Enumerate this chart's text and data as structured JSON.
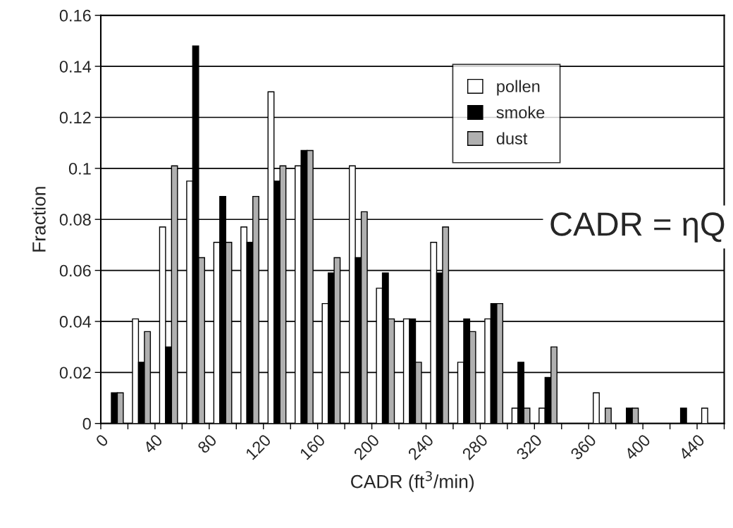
{
  "chart_data": {
    "type": "bar",
    "xlabel": "CADR (ft$^{3}$/min)",
    "ylabel": "Fraction",
    "x": [
      10,
      30,
      50,
      70,
      90,
      110,
      130,
      150,
      170,
      190,
      210,
      230,
      250,
      270,
      290,
      310,
      330,
      350,
      370,
      390,
      410,
      430,
      450
    ],
    "series": [
      {
        "name": "pollen",
        "color": "#ffffff",
        "values": [
          null,
          0.041,
          0.077,
          0.095,
          0.071,
          0.077,
          0.13,
          0.101,
          0.047,
          0.101,
          0.053,
          0.041,
          0.071,
          0.024,
          0.041,
          0.006,
          0.006,
          null,
          0.012,
          null,
          null,
          null,
          0.006
        ]
      },
      {
        "name": "smoke",
        "color": "#000000",
        "values": [
          0.012,
          0.024,
          0.03,
          0.148,
          0.089,
          0.071,
          0.095,
          0.107,
          0.059,
          0.065,
          0.059,
          0.041,
          0.059,
          0.041,
          0.047,
          0.024,
          0.018,
          null,
          null,
          0.006,
          null,
          0.006,
          null
        ]
      },
      {
        "name": "dust",
        "color": "#b0b0b0",
        "values": [
          0.012,
          0.036,
          0.101,
          0.065,
          0.071,
          0.089,
          0.101,
          0.107,
          0.065,
          0.083,
          0.041,
          0.024,
          0.077,
          0.036,
          0.047,
          0.006,
          0.03,
          null,
          0.006,
          0.006,
          null,
          null,
          null
        ]
      }
    ],
    "xlim": [
      0,
      460
    ],
    "xticks": [
      0,
      {
        "value": 20,
        "label": null
      },
      40,
      {
        "value": 60,
        "label": null
      },
      80,
      {
        "value": 100,
        "label": null
      },
      120,
      {
        "value": 140,
        "label": null
      },
      160,
      {
        "value": 180,
        "label": null
      },
      200,
      {
        "value": 220,
        "label": null
      },
      240,
      {
        "value": 260,
        "label": null
      },
      280,
      {
        "value": 300,
        "label": null
      },
      320,
      {
        "value": 340,
        "label": null
      },
      360,
      {
        "value": 380,
        "label": null
      },
      400,
      {
        "value": 420,
        "label": null
      },
      440,
      {
        "value": 460,
        "label": null
      }
    ],
    "ylim": [
      0,
      0.16
    ],
    "yticks": [
      0,
      0.02,
      0.04,
      0.06,
      0.08,
      0.1,
      0.12,
      0.14,
      0.16
    ],
    "grid": "y",
    "legend": "top right",
    "annotations": [
      "CADR = ηQ"
    ]
  }
}
